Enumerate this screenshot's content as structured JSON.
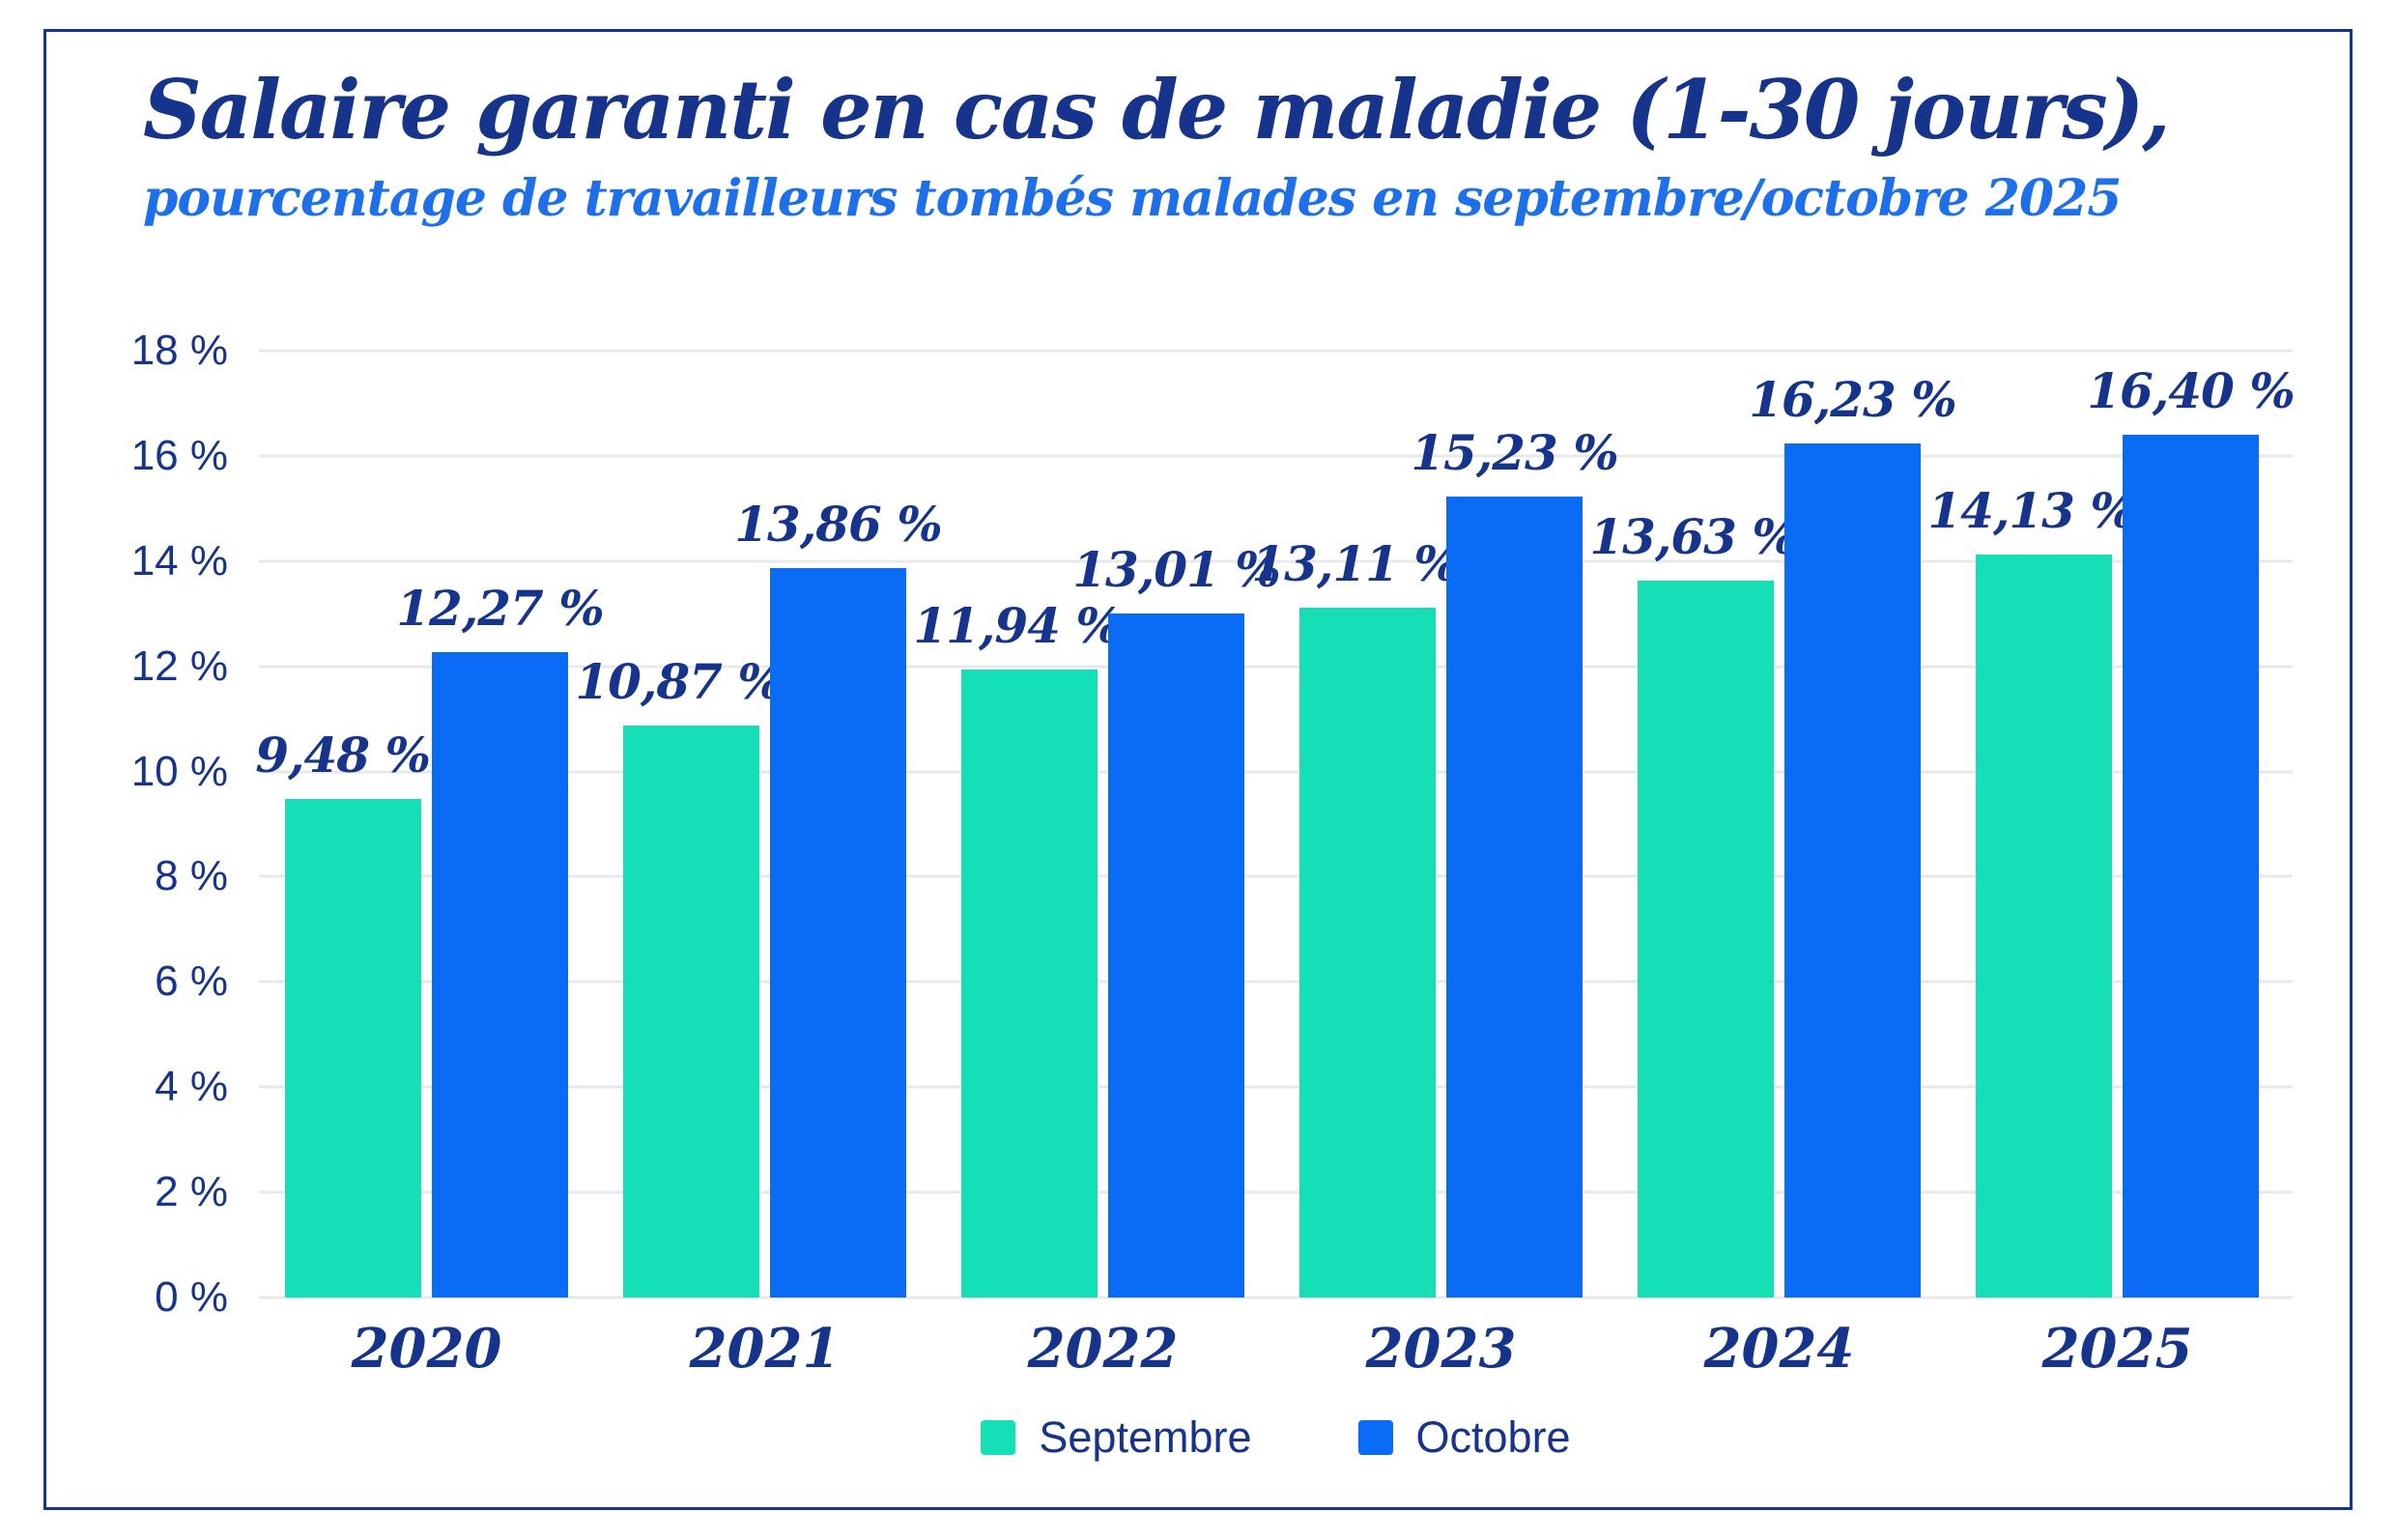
{
  "colors": {
    "title_text": "#17348C",
    "subtitle_text": "#1D70E9",
    "axis_text": "#17348C",
    "septembre_bar": "#15DFB4",
    "octobre_bar": "#0A6CF5",
    "gridline": "#E8E8EA",
    "frame_border": "#17348C",
    "background": "#FFFFFF"
  },
  "chart_data": {
    "type": "bar",
    "title": "Salaire garanti en cas de maladie (1-30 jours),",
    "subtitle": "pourcentage de travailleurs tombés malades en septembre/octobre 2025",
    "categories": [
      "2020",
      "2021",
      "2022",
      "2023",
      "2024",
      "2025"
    ],
    "series": [
      {
        "name": "Septembre",
        "color": "#15DFB4",
        "values": [
          9.48,
          10.87,
          11.94,
          13.11,
          13.63,
          14.13
        ],
        "labels": [
          "9,48 %",
          "10,87 %",
          "11,94 %",
          "13,11 %",
          "13,63 %",
          "14,13 %"
        ]
      },
      {
        "name": "Octobre",
        "color": "#0A6CF5",
        "values": [
          12.27,
          13.86,
          13.01,
          15.23,
          16.23,
          16.4
        ],
        "labels": [
          "12,27 %",
          "13,86 %",
          "13,01 %",
          "15,23 %",
          "16,23 %",
          "16,40 %"
        ]
      }
    ],
    "xlabel": "",
    "ylabel": "",
    "ylim": [
      0,
      18
    ],
    "ytick_values": [
      18,
      16,
      14,
      12,
      10,
      8,
      6,
      4,
      2,
      0
    ],
    "ytick_labels": [
      "18 %",
      "16 %",
      "14 %",
      "12 %",
      "10 %",
      "8 %",
      "6 %",
      "4 %",
      "2 %",
      "0 %"
    ],
    "grid": true,
    "legend_position": "bottom"
  }
}
